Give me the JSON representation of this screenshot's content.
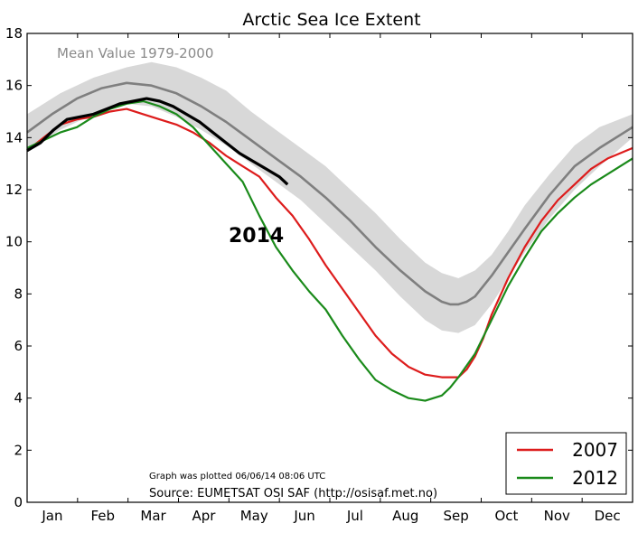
{
  "chart_data": {
    "type": "line",
    "title": "Arctic Sea Ice Extent",
    "ylim": [
      0,
      18
    ],
    "yticks": [
      "0",
      "2",
      "4",
      "6",
      "8",
      "10",
      "12",
      "14",
      "16",
      "18"
    ],
    "months": [
      "Jan",
      "Feb",
      "Mar",
      "Apr",
      "May",
      "Jun",
      "Jul",
      "Aug",
      "Sep",
      "Oct",
      "Nov",
      "Dec"
    ],
    "grid": false,
    "legend_position": "bottom-right",
    "mean_label": "Mean Value 1979-2000",
    "year_label": "2014",
    "plot_note": "Graph was plotted 06/06/14 08:06 UTC",
    "source": "Source: EUMETSAT OSI SAF (http://osisaf.met.no)",
    "band": {
      "x": [
        0,
        20,
        40,
        60,
        75,
        90,
        105,
        120,
        135,
        150,
        165,
        180,
        195,
        210,
        225,
        240,
        250,
        260,
        270,
        280,
        290,
        300,
        315,
        330,
        345,
        365
      ],
      "lower": [
        13.5,
        14.3,
        14.9,
        15.3,
        15.2,
        14.8,
        14.3,
        13.7,
        13.0,
        12.3,
        11.6,
        10.7,
        9.8,
        8.9,
        7.9,
        7.0,
        6.6,
        6.5,
        6.8,
        7.6,
        8.6,
        9.6,
        10.9,
        12.0,
        12.9,
        14.0
      ],
      "upper": [
        14.9,
        15.7,
        16.3,
        16.7,
        16.9,
        16.7,
        16.3,
        15.8,
        15.0,
        14.3,
        13.6,
        12.9,
        12.0,
        11.1,
        10.1,
        9.2,
        8.8,
        8.6,
        8.9,
        9.5,
        10.4,
        11.4,
        12.6,
        13.7,
        14.4,
        14.9
      ]
    },
    "series": [
      {
        "name": "Mean",
        "color": "#7f7f7f",
        "x": [
          0,
          15,
          30,
          45,
          60,
          75,
          90,
          105,
          120,
          135,
          150,
          165,
          180,
          195,
          210,
          225,
          240,
          250,
          255,
          260,
          265,
          270,
          280,
          290,
          300,
          315,
          330,
          345,
          365
        ],
        "values": [
          14.2,
          14.9,
          15.5,
          15.9,
          16.1,
          16.0,
          15.7,
          15.2,
          14.6,
          13.9,
          13.2,
          12.5,
          11.7,
          10.8,
          9.8,
          8.9,
          8.1,
          7.7,
          7.6,
          7.6,
          7.7,
          7.9,
          8.7,
          9.6,
          10.5,
          11.8,
          12.9,
          13.6,
          14.4
        ]
      },
      {
        "name": "2007",
        "color": "#dd1c1c",
        "x": [
          0,
          10,
          20,
          30,
          40,
          50,
          60,
          70,
          80,
          90,
          100,
          110,
          120,
          130,
          140,
          150,
          160,
          170,
          180,
          190,
          200,
          210,
          220,
          230,
          240,
          250,
          260,
          265,
          270,
          275,
          280,
          290,
          300,
          310,
          320,
          330,
          340,
          350,
          365
        ],
        "values": [
          13.5,
          14.0,
          14.5,
          14.7,
          14.8,
          15.0,
          15.1,
          14.9,
          14.7,
          14.5,
          14.2,
          13.8,
          13.3,
          12.9,
          12.5,
          11.7,
          11.0,
          10.1,
          9.1,
          8.2,
          7.3,
          6.4,
          5.7,
          5.2,
          4.9,
          4.8,
          4.8,
          5.1,
          5.6,
          6.3,
          7.2,
          8.6,
          9.8,
          10.8,
          11.6,
          12.2,
          12.8,
          13.2,
          13.6
        ]
      },
      {
        "name": "2012",
        "color": "#1a8a1a",
        "x": [
          0,
          10,
          20,
          30,
          40,
          50,
          60,
          70,
          80,
          90,
          100,
          110,
          120,
          130,
          140,
          150,
          160,
          170,
          180,
          190,
          200,
          210,
          220,
          230,
          240,
          245,
          250,
          255,
          260,
          270,
          280,
          290,
          300,
          310,
          320,
          330,
          340,
          350,
          365
        ],
        "values": [
          13.6,
          13.9,
          14.2,
          14.4,
          14.8,
          15.1,
          15.3,
          15.4,
          15.2,
          14.9,
          14.4,
          13.7,
          13.0,
          12.3,
          11.0,
          9.8,
          8.9,
          8.1,
          7.4,
          6.4,
          5.5,
          4.7,
          4.3,
          4.0,
          3.9,
          4.0,
          4.1,
          4.4,
          4.8,
          5.7,
          7.0,
          8.3,
          9.4,
          10.4,
          11.1,
          11.7,
          12.2,
          12.6,
          13.2
        ]
      },
      {
        "name": "2014",
        "color": "#000000",
        "x": [
          0,
          8,
          16,
          24,
          32,
          40,
          48,
          56,
          64,
          72,
          80,
          88,
          96,
          104,
          112,
          120,
          128,
          136,
          144,
          152,
          157
        ],
        "values": [
          13.5,
          13.8,
          14.3,
          14.7,
          14.8,
          14.9,
          15.1,
          15.3,
          15.4,
          15.5,
          15.4,
          15.2,
          14.9,
          14.6,
          14.2,
          13.8,
          13.4,
          13.1,
          12.8,
          12.5,
          12.2
        ]
      }
    ],
    "legend": [
      {
        "label": "2007",
        "color": "#dd1c1c"
      },
      {
        "label": "2012",
        "color": "#1a8a1a"
      }
    ]
  }
}
